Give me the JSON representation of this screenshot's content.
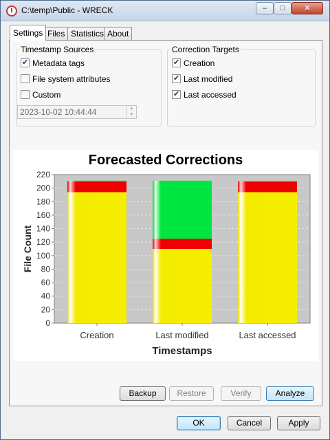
{
  "window": {
    "title": "C:\\temp\\Public - WRECK",
    "minimize_glyph": "–",
    "maximize_glyph": "□",
    "close_glyph": "✕"
  },
  "tabs": [
    {
      "label": "Settings",
      "active": true
    },
    {
      "label": "Files",
      "active": false
    },
    {
      "label": "Statistics",
      "active": false
    },
    {
      "label": "About",
      "active": false
    }
  ],
  "timestamp_sources": {
    "title": "Timestamp Sources",
    "items": [
      {
        "label": "Metadata tags",
        "checked": true
      },
      {
        "label": "File system attributes",
        "checked": false
      },
      {
        "label": "Custom",
        "checked": false
      }
    ],
    "custom_datetime": "2023-10-02 10:44:44"
  },
  "correction_targets": {
    "title": "Correction Targets",
    "items": [
      {
        "label": "Creation",
        "checked": true
      },
      {
        "label": "Last modified",
        "checked": true
      },
      {
        "label": "Last accessed",
        "checked": true
      }
    ]
  },
  "chart_data": {
    "type": "bar",
    "stacked": true,
    "title": "Forecasted Corrections",
    "xlabel": "Timestamps",
    "ylabel": "File Count",
    "ylim": [
      0,
      220
    ],
    "yticks": [
      0,
      20,
      40,
      60,
      80,
      100,
      120,
      140,
      160,
      180,
      200,
      220
    ],
    "categories": [
      "Creation",
      "Last modified",
      "Last accessed"
    ],
    "series": [
      {
        "color": "#f5f000",
        "values": [
          194,
          110,
          194
        ]
      },
      {
        "color": "#ee0000",
        "values": [
          16,
          15,
          16
        ]
      },
      {
        "color": "#00e640",
        "values": [
          1,
          86,
          0
        ]
      }
    ],
    "grid": true
  },
  "buttons": {
    "backup": "Backup",
    "restore": "Restore",
    "verify": "Verify",
    "analyze": "Analyze",
    "ok": "OK",
    "cancel": "Cancel",
    "apply": "Apply"
  }
}
